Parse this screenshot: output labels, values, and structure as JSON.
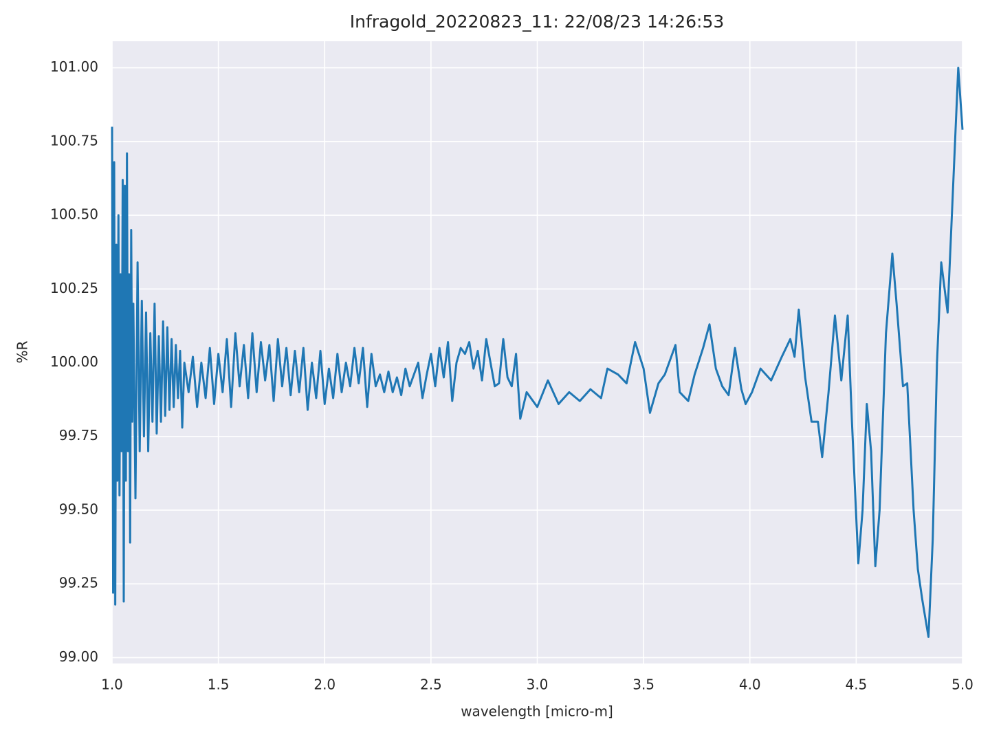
{
  "chart_data": {
    "type": "line",
    "title": "Infragold_20220823_11:  22/08/23 14:26:53",
    "x_label": "wavelength [micro-m]",
    "y_label": "%R",
    "color": "#1f77b4",
    "grid": true,
    "xlim": [
      1,
      5
    ],
    "ylim": [
      98.98,
      101.09
    ],
    "xticks": [
      {
        "value": 1,
        "label": "1.0"
      },
      {
        "value": 1.5,
        "label": "1.5"
      },
      {
        "value": 2,
        "label": "2.0"
      },
      {
        "value": 2.5,
        "label": "2.5"
      },
      {
        "value": 3,
        "label": "3.0"
      },
      {
        "value": 3.5,
        "label": "3.5"
      },
      {
        "value": 4,
        "label": "4.0"
      },
      {
        "value": 4.5,
        "label": "4.5"
      },
      {
        "value": 5,
        "label": "5.0"
      }
    ],
    "yticks": [
      {
        "value": 99,
        "label": "99.00"
      },
      {
        "value": 99.25,
        "label": "99.25"
      },
      {
        "value": 99.5,
        "label": "99.50"
      },
      {
        "value": 99.75,
        "label": "99.75"
      },
      {
        "value": 100,
        "label": "100.00"
      },
      {
        "value": 100.25,
        "label": "100.25"
      },
      {
        "value": 100.5,
        "label": "100.50"
      },
      {
        "value": 100.75,
        "label": "100.75"
      },
      {
        "value": 101,
        "label": "101.00"
      }
    ],
    "x": [
      1.0,
      1.005,
      1.01,
      1.015,
      1.02,
      1.025,
      1.03,
      1.035,
      1.04,
      1.045,
      1.05,
      1.055,
      1.06,
      1.065,
      1.07,
      1.075,
      1.08,
      1.085,
      1.09,
      1.095,
      1.1,
      1.11,
      1.12,
      1.13,
      1.14,
      1.15,
      1.16,
      1.17,
      1.18,
      1.19,
      1.2,
      1.21,
      1.22,
      1.23,
      1.24,
      1.25,
      1.26,
      1.27,
      1.28,
      1.29,
      1.3,
      1.31,
      1.32,
      1.33,
      1.34,
      1.36,
      1.38,
      1.4,
      1.42,
      1.44,
      1.46,
      1.48,
      1.5,
      1.52,
      1.54,
      1.56,
      1.58,
      1.6,
      1.62,
      1.64,
      1.66,
      1.68,
      1.7,
      1.72,
      1.74,
      1.76,
      1.78,
      1.8,
      1.82,
      1.84,
      1.86,
      1.88,
      1.9,
      1.92,
      1.94,
      1.96,
      1.98,
      2.0,
      2.02,
      2.04,
      2.06,
      2.08,
      2.1,
      2.12,
      2.14,
      2.16,
      2.18,
      2.2,
      2.22,
      2.24,
      2.26,
      2.28,
      2.3,
      2.32,
      2.34,
      2.36,
      2.38,
      2.4,
      2.42,
      2.44,
      2.46,
      2.48,
      2.5,
      2.52,
      2.54,
      2.56,
      2.58,
      2.6,
      2.62,
      2.64,
      2.66,
      2.68,
      2.7,
      2.72,
      2.74,
      2.76,
      2.78,
      2.8,
      2.82,
      2.84,
      2.86,
      2.88,
      2.9,
      2.92,
      2.95,
      3.0,
      3.05,
      3.1,
      3.15,
      3.2,
      3.25,
      3.3,
      3.33,
      3.38,
      3.42,
      3.46,
      3.5,
      3.53,
      3.57,
      3.6,
      3.65,
      3.67,
      3.71,
      3.74,
      3.78,
      3.81,
      3.84,
      3.87,
      3.9,
      3.93,
      3.96,
      3.98,
      4.01,
      4.05,
      4.1,
      4.15,
      4.19,
      4.21,
      4.23,
      4.26,
      4.29,
      4.32,
      4.34,
      4.37,
      4.4,
      4.43,
      4.46,
      4.48,
      4.51,
      4.53,
      4.55,
      4.57,
      4.59,
      4.61,
      4.64,
      4.67,
      4.69,
      4.72,
      4.74,
      4.77,
      4.79,
      4.81,
      4.84,
      4.86,
      4.88,
      4.9,
      4.93,
      4.95,
      4.98,
      5.0
    ],
    "values": [
      100.8,
      99.22,
      100.68,
      99.18,
      100.4,
      99.6,
      100.5,
      99.55,
      100.3,
      99.7,
      100.62,
      99.19,
      100.6,
      99.6,
      100.71,
      99.7,
      100.3,
      99.39,
      100.45,
      99.8,
      100.2,
      99.54,
      100.34,
      99.7,
      100.21,
      99.75,
      100.17,
      99.7,
      100.1,
      99.8,
      100.2,
      99.76,
      100.09,
      99.8,
      100.14,
      99.82,
      100.12,
      99.84,
      100.08,
      99.85,
      100.06,
      99.88,
      100.04,
      99.78,
      100.0,
      99.9,
      100.02,
      99.85,
      100.0,
      99.88,
      100.05,
      99.86,
      100.03,
      99.9,
      100.08,
      99.85,
      100.1,
      99.92,
      100.06,
      99.88,
      100.1,
      99.9,
      100.07,
      99.94,
      100.06,
      99.87,
      100.08,
      99.92,
      100.05,
      99.89,
      100.04,
      99.9,
      100.05,
      99.84,
      100.0,
      99.88,
      100.04,
      99.86,
      99.98,
      99.88,
      100.03,
      99.9,
      100.0,
      99.92,
      100.05,
      99.93,
      100.05,
      99.85,
      100.03,
      99.92,
      99.96,
      99.9,
      99.97,
      99.9,
      99.95,
      99.89,
      99.98,
      99.92,
      99.96,
      100.0,
      99.88,
      99.96,
      100.03,
      99.92,
      100.05,
      99.95,
      100.07,
      99.87,
      100.0,
      100.05,
      100.03,
      100.07,
      99.98,
      100.04,
      99.94,
      100.08,
      100.0,
      99.92,
      99.93,
      100.08,
      99.95,
      99.92,
      100.03,
      99.81,
      99.9,
      99.85,
      99.94,
      99.86,
      99.9,
      99.87,
      99.91,
      99.88,
      99.98,
      99.96,
      99.93,
      100.07,
      99.98,
      99.83,
      99.93,
      99.96,
      100.06,
      99.9,
      99.87,
      99.96,
      100.05,
      100.13,
      99.98,
      99.92,
      99.89,
      100.05,
      99.91,
      99.86,
      99.9,
      99.98,
      99.94,
      100.02,
      100.08,
      100.02,
      100.18,
      99.95,
      99.8,
      99.8,
      99.68,
      99.9,
      100.16,
      99.94,
      100.16,
      99.8,
      99.32,
      99.5,
      99.86,
      99.7,
      99.31,
      99.5,
      100.1,
      100.37,
      100.2,
      99.92,
      99.93,
      99.5,
      99.3,
      99.2,
      99.07,
      99.4,
      100.0,
      100.34,
      100.17,
      100.5,
      101.0,
      100.79
    ]
  }
}
